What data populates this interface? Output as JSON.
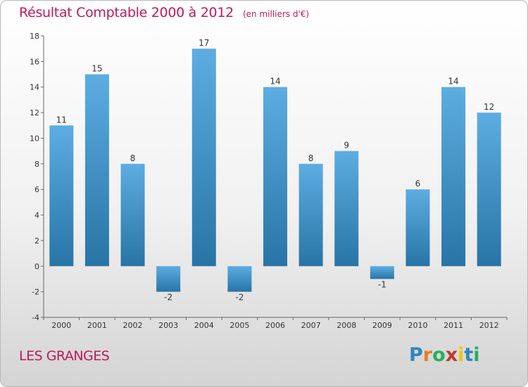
{
  "title": "Résultat Comptable 2000 à 2012",
  "unit_note": "(en milliers d'€)",
  "town": "LES GRANGES",
  "logo": {
    "text": "Proxiti",
    "letters": [
      {
        "ch": "P",
        "color": "#2e86c1"
      },
      {
        "ch": "r",
        "color": "#e67e22"
      },
      {
        "ch": "o",
        "color": "#27ae60"
      },
      {
        "ch": "x",
        "color": "#c0392b"
      },
      {
        "ch": "i",
        "color": "#f1c40f"
      },
      {
        "ch": "t",
        "color": "#2e86c1"
      },
      {
        "ch": "i",
        "color": "#27ae60"
      }
    ]
  },
  "colors": {
    "bar_top": "#5dade2",
    "bar_bottom": "#2874a6",
    "title": "#c2185b"
  },
  "chart_data": {
    "type": "bar",
    "title": "Résultat Comptable 2000 à 2012",
    "categories": [
      "2000",
      "2001",
      "2002",
      "2003",
      "2004",
      "2005",
      "2006",
      "2007",
      "2008",
      "2009",
      "2010",
      "2011",
      "2012"
    ],
    "values": [
      11,
      15,
      8,
      -2,
      17,
      -2,
      14,
      8,
      9,
      -1,
      6,
      14,
      12
    ],
    "data_labels": [
      "11",
      "15",
      "8",
      "-2",
      "17",
      "-2",
      "14",
      "8",
      "9",
      "-1",
      "6",
      "14",
      "12"
    ],
    "ylim": [
      -4,
      18
    ],
    "yticks": [
      -4,
      -2,
      0,
      2,
      4,
      6,
      8,
      10,
      12,
      14,
      16,
      18
    ],
    "ytick_labels": [
      "-4",
      "-2",
      "0",
      "2",
      "4",
      "6",
      "8",
      "10",
      "12",
      "14",
      "16",
      "18"
    ],
    "xlabel": "",
    "ylabel": "",
    "grid": false,
    "legend": "none"
  }
}
